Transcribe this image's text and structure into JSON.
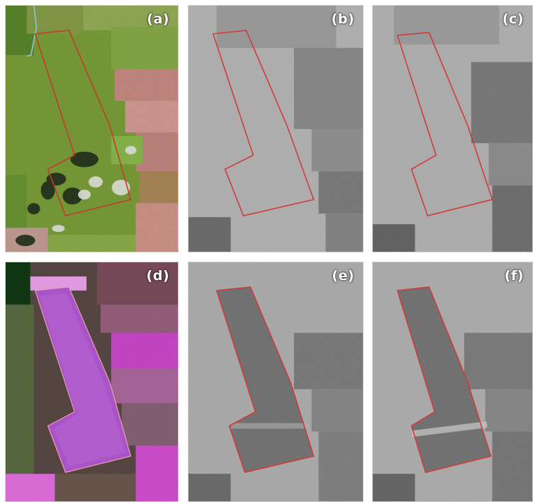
{
  "panels": [
    {
      "id": "a",
      "label": "(a)",
      "kind": "optical-green"
    },
    {
      "id": "b",
      "label": "(b)",
      "kind": "sar-bright"
    },
    {
      "id": "c",
      "label": "(c)",
      "kind": "sar-bright"
    },
    {
      "id": "d",
      "label": "(d)",
      "kind": "optical-magenta"
    },
    {
      "id": "e",
      "label": "(e)",
      "kind": "sar-dark"
    },
    {
      "id": "f",
      "label": "(f)",
      "kind": "sar-dark"
    }
  ],
  "colors": {
    "field_outline": "#d23a3a",
    "vegetation": "#7fa53a",
    "bare_soil_pink": "#d99a8e",
    "bloom_magenta": "#e14fe0",
    "sar_grey": "#9a9a9a"
  }
}
